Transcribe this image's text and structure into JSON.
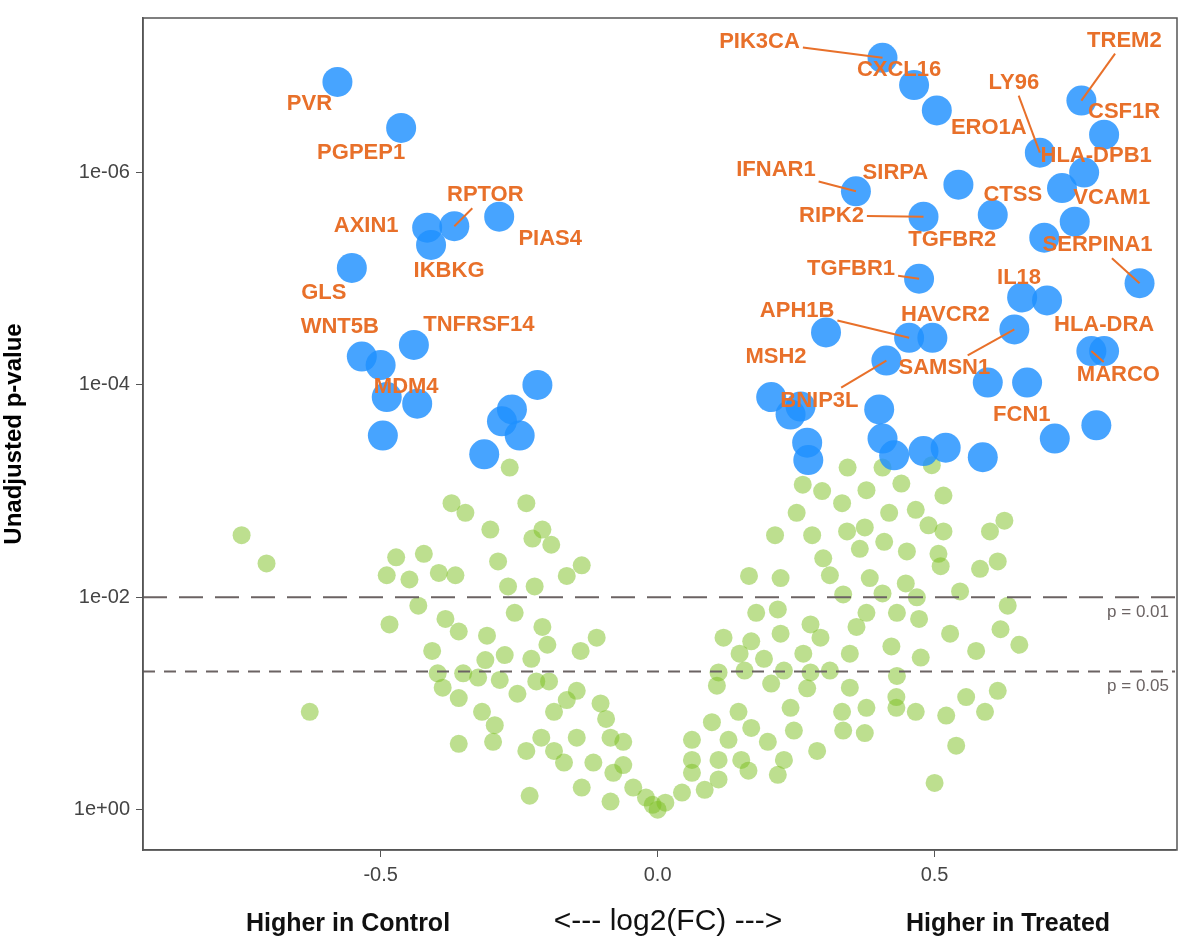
{
  "chart_data": {
    "type": "scatter",
    "xlabel": "<--- log2(FC) --->",
    "ylabel": "Unadjusted p-value",
    "xlim": [
      -0.929,
      0.934
    ],
    "xticks": [
      -0.5,
      {
        "value": 0,
        "label": "0.0"
      },
      0.5
    ],
    "ylim": [
      2.4,
      3.5e-08
    ],
    "yticks": [
      {
        "value": 1,
        "label": "1e+00"
      },
      {
        "value": 0.01,
        "label": "1e-02"
      },
      {
        "value": 0.0001,
        "label": "1e-04"
      },
      {
        "value": 1e-06,
        "label": "1e-06"
      }
    ],
    "log": "y",
    "legend": false,
    "marker": "circle",
    "ref_lines": [
      {
        "axis": "y",
        "value": 0.01,
        "label": "p = 0.01",
        "color": "#6b6363",
        "line_style": "dashed"
      },
      {
        "axis": "y",
        "value": 0.05,
        "label": "p = 0.05",
        "color": "#6b6363",
        "line_style": "dashed"
      }
    ],
    "series": [
      {
        "color": "#7cbf1f",
        "x": [
          -0.751,
          -0.706,
          -0.628,
          -0.267,
          -0.372,
          -0.347,
          -0.302,
          -0.237,
          -0.208,
          -0.192,
          -0.226,
          -0.472,
          -0.422,
          -0.489,
          -0.395,
          -0.365,
          -0.448,
          -0.432,
          -0.288,
          -0.27,
          -0.222,
          -0.164,
          -0.137,
          -0.484,
          -0.383,
          -0.359,
          -0.308,
          -0.258,
          -0.208,
          -0.199,
          -0.407,
          -0.311,
          -0.276,
          -0.228,
          -0.139,
          -0.11,
          -0.397,
          -0.351,
          -0.324,
          -0.285,
          -0.388,
          -0.359,
          -0.317,
          -0.294,
          -0.253,
          -0.219,
          -0.196,
          -0.146,
          -0.103,
          -0.093,
          -0.359,
          -0.297,
          -0.237,
          -0.21,
          -0.187,
          -0.164,
          -0.187,
          -0.146,
          -0.085,
          -0.062,
          -0.169,
          -0.116,
          -0.08,
          -0.062,
          -0.137,
          -0.231,
          -0.085,
          -0.044,
          -0.021,
          -0.009,
          0,
          0.343,
          0.406,
          0.495,
          0.262,
          0.297,
          0.333,
          0.377,
          0.44,
          0.516,
          0.251,
          0.418,
          0.466,
          0.212,
          0.279,
          0.342,
          0.374,
          0.489,
          0.516,
          0.626,
          0.6,
          0.299,
          0.365,
          0.409,
          0.45,
          0.507,
          0.165,
          0.222,
          0.311,
          0.383,
          0.448,
          0.511,
          0.582,
          0.614,
          0.546,
          0.335,
          0.406,
          0.468,
          0.632,
          0.178,
          0.217,
          0.276,
          0.377,
          0.432,
          0.472,
          0.119,
          0.169,
          0.222,
          0.294,
          0.359,
          0.528,
          0.619,
          0.653,
          0.148,
          0.192,
          0.263,
          0.347,
          0.422,
          0.475,
          0.575,
          0.11,
          0.157,
          0.228,
          0.276,
          0.311,
          0.432,
          0.107,
          0.205,
          0.27,
          0.347,
          0.431,
          0.557,
          0.614,
          0.146,
          0.24,
          0.333,
          0.377,
          0.431,
          0.466,
          0.591,
          0.521,
          0.098,
          0.169,
          0.246,
          0.335,
          0.374,
          0.062,
          0.128,
          0.199,
          0.288,
          0.539,
          0.11,
          0.151,
          0.228,
          0.062,
          0.062,
          0.11,
          0.164,
          0.217,
          0.085,
          0.044,
          0.014,
          0.5
        ],
        "values": [
          0.0026,
          0.0048,
          0.12,
          0.0006,
          0.0013,
          0.0016,
          0.0023,
          0.0013,
          0.0023,
          0.0032,
          0.0028,
          0.0042,
          0.0039,
          0.0062,
          0.0059,
          0.0062,
          0.0068,
          0.012,
          0.0046,
          0.0079,
          0.0079,
          0.0063,
          0.005,
          0.018,
          0.016,
          0.021,
          0.023,
          0.014,
          0.019,
          0.028,
          0.032,
          0.039,
          0.035,
          0.038,
          0.032,
          0.024,
          0.052,
          0.052,
          0.057,
          0.06,
          0.071,
          0.089,
          0.12,
          0.16,
          0.081,
          0.062,
          0.062,
          0.076,
          0.1,
          0.14,
          0.24,
          0.23,
          0.28,
          0.21,
          0.12,
          0.093,
          0.28,
          0.21,
          0.21,
          0.23,
          0.36,
          0.36,
          0.45,
          0.38,
          0.62,
          0.74,
          0.84,
          0.62,
          0.77,
          0.9,
          1,
          0.0006,
          0.0006,
          0.00057,
          0.00087,
          0.001,
          0.0013,
          0.00098,
          0.00085,
          0.0011,
          0.0016,
          0.0016,
          0.0015,
          0.0026,
          0.0026,
          0.0024,
          0.0022,
          0.0021,
          0.0024,
          0.0019,
          0.0024,
          0.0043,
          0.0035,
          0.003,
          0.0037,
          0.0039,
          0.0063,
          0.0066,
          0.0062,
          0.0066,
          0.0074,
          0.0051,
          0.0054,
          0.0046,
          0.0088,
          0.0094,
          0.0092,
          0.01,
          0.012,
          0.014,
          0.013,
          0.018,
          0.014,
          0.014,
          0.016,
          0.024,
          0.026,
          0.022,
          0.024,
          0.019,
          0.022,
          0.02,
          0.028,
          0.034,
          0.038,
          0.034,
          0.034,
          0.029,
          0.037,
          0.032,
          0.051,
          0.049,
          0.049,
          0.051,
          0.049,
          0.055,
          0.068,
          0.065,
          0.072,
          0.071,
          0.087,
          0.087,
          0.076,
          0.12,
          0.11,
          0.12,
          0.11,
          0.11,
          0.12,
          0.12,
          0.13,
          0.15,
          0.17,
          0.18,
          0.18,
          0.19,
          0.22,
          0.22,
          0.23,
          0.28,
          0.25,
          0.34,
          0.34,
          0.34,
          0.34,
          0.45,
          0.52,
          0.43,
          0.47,
          0.65,
          0.69,
          0.86,
          0.56
        ]
      },
      {
        "color": "#1e90ff",
        "x": [
          -0.578,
          -0.463,
          -0.416,
          -0.367,
          -0.409,
          -0.286,
          -0.552,
          -0.534,
          -0.44,
          -0.434,
          0.406,
          0.463,
          0.504,
          0.69,
          0.765,
          0.806,
          0.77,
          0.358,
          0.543,
          0.605,
          0.753,
          0.48,
          0.698,
          0.87,
          0.703,
          0.472,
          0.454,
          0.496,
          0.644,
          0.806,
          0.783,
          0.717,
          0.304,
          0.413,
          -0.5,
          -0.489,
          -0.496,
          -0.217,
          -0.263,
          -0.281,
          -0.249,
          -0.313,
          0.73,
          0.4,
          0.205,
          0.258,
          0.24,
          0.27,
          0.272,
          0.406,
          0.427,
          0.48,
          0.52,
          0.587,
          0.667,
          0.596,
          0.792,
          0.658
        ],
        "values": [
          1.4e-07,
          3.8e-07,
          3.3e-06,
          3.2e-06,
          4.8e-06,
          2.6e-06,
          7.9e-06,
          5.4e-05,
          4.2e-05,
          0.00015,
          8.3e-08,
          1.5e-07,
          2.6e-07,
          6.5e-07,
          2.1e-07,
          4.4e-07,
          1e-06,
          1.5e-06,
          1.3e-06,
          2.5e-06,
          2.9e-06,
          2.6e-06,
          4.1e-06,
          1.1e-05,
          1.6e-05,
          1e-05,
          3.6e-05,
          3.6e-05,
          3e-05,
          4.8e-05,
          4.8e-05,
          0.00032,
          3.2e-05,
          5.9e-05,
          6.5e-05,
          0.00013,
          0.0003,
          0.0001,
          0.00017,
          0.00022,
          0.0003,
          0.00045,
          1.4e-06,
          0.00017,
          0.00013,
          0.00016,
          0.00019,
          0.00035,
          0.00051,
          0.00032,
          0.00046,
          0.00042,
          0.00039,
          0.00048,
          9.5e-05,
          9.5e-05,
          0.00024,
          1.5e-05
        ]
      }
    ],
    "annotations": [
      "Higher in Control",
      "Higher in Treated",
      {
        "text": "PVR",
        "x": -0.578,
        "y": 1.4e-07
      },
      {
        "text": "PGPEP1",
        "x": -0.463,
        "y": 3.8e-07
      },
      {
        "text": "AXIN1",
        "x": -0.416,
        "y": 3.3e-06
      },
      {
        "text": "RPTOR",
        "x": -0.367,
        "y": 3.2e-06
      },
      {
        "text": "IKBKG",
        "x": -0.409,
        "y": 4.8e-06
      },
      {
        "text": "PIAS4",
        "x": -0.286,
        "y": 2.6e-06
      },
      {
        "text": "GLS",
        "x": -0.552,
        "y": 7.9e-06
      },
      {
        "text": "WNT5B",
        "x": -0.534,
        "y": 5.4e-05
      },
      {
        "text": "TNFRSF14",
        "x": -0.44,
        "y": 4.2e-05
      },
      {
        "text": "MDM4",
        "x": -0.434,
        "y": 0.00015
      },
      {
        "text": "PIK3CA",
        "x": 0.406,
        "y": 8.3e-08
      },
      {
        "text": "CXCL16",
        "x": 0.463,
        "y": 1.5e-07
      },
      {
        "text": "ERO1A",
        "x": 0.504,
        "y": 2.6e-07
      },
      {
        "text": "LY96",
        "x": 0.69,
        "y": 6.5e-07
      },
      {
        "text": "TREM2",
        "x": 0.765,
        "y": 2.1e-07
      },
      {
        "text": "CSF1R",
        "x": 0.806,
        "y": 4.4e-07
      },
      {
        "text": "HLA-DPB1",
        "x": 0.77,
        "y": 1e-06
      },
      {
        "text": "IFNAR1",
        "x": 0.358,
        "y": 1.5e-06
      },
      {
        "text": "SIRPA",
        "x": 0.543,
        "y": 1.3e-06
      },
      {
        "text": "CTSS",
        "x": 0.605,
        "y": 2.5e-06
      },
      {
        "text": "VCAM1",
        "x": 0.753,
        "y": 2.9e-06
      },
      {
        "text": "RIPK2",
        "x": 0.48,
        "y": 2.6e-06
      },
      {
        "text": "TGFBR2",
        "x": 0.698,
        "y": 4.1e-06
      },
      {
        "text": "SERPINA1",
        "x": 0.87,
        "y": 1.1e-05
      },
      {
        "text": "IL18",
        "x": 0.703,
        "y": 1.6e-05
      },
      {
        "text": "TGFBR1",
        "x": 0.472,
        "y": 1e-05
      },
      {
        "text": "APH1B",
        "x": 0.454,
        "y": 3.6e-05
      },
      {
        "text": "HAVCR2",
        "x": 0.496,
        "y": 3.6e-05
      },
      {
        "text": "SAMSN1",
        "x": 0.644,
        "y": 3e-05
      },
      {
        "text": "HLA-DRA",
        "x": 0.806,
        "y": 4.8e-05
      },
      {
        "text": "MARCO",
        "x": 0.783,
        "y": 4.8e-05
      },
      {
        "text": "FCN1",
        "x": 0.717,
        "y": 0.00032
      },
      {
        "text": "MSH2",
        "x": 0.304,
        "y": 3.2e-05
      },
      {
        "text": "BNIP3L",
        "x": 0.413,
        "y": 5.9e-05
      }
    ]
  }
}
